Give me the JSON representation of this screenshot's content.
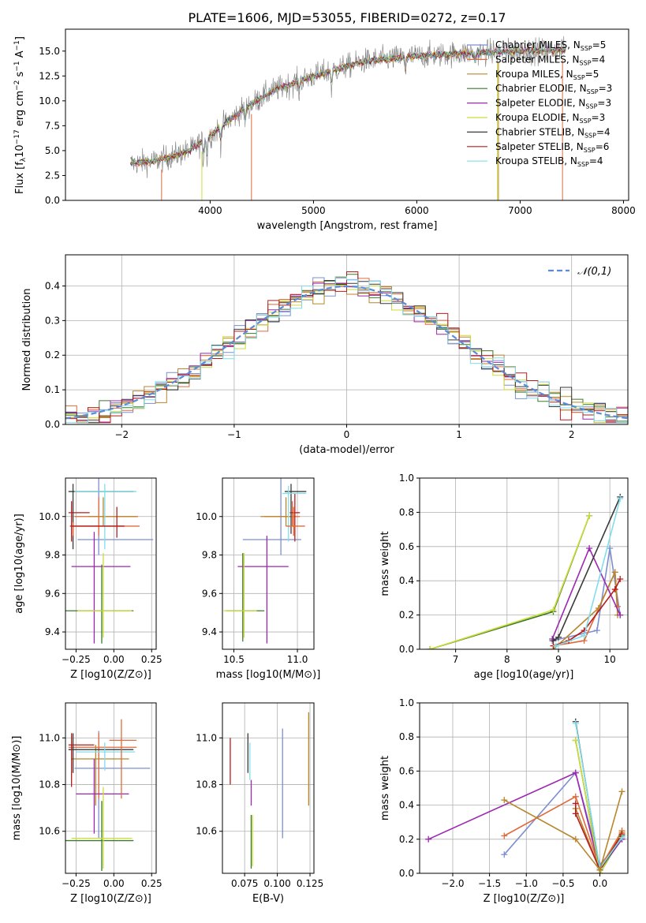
{
  "figure_title": "PLATE=1606, MJD=53055, FIBERID=0272, z=0.17",
  "colors": {
    "grid": "#b0b0b0",
    "axis": "#000000",
    "spectrum": "#7f7f7f",
    "normal": "#5b8bd8"
  },
  "models": [
    {
      "name": "Chabrier MILES",
      "nssp": "5",
      "color": "#7b8fd0"
    },
    {
      "name": "Salpeter MILES",
      "nssp": "4",
      "color": "#e06a3a"
    },
    {
      "name": "Kroupa MILES",
      "nssp": "5",
      "color": "#b8862c"
    },
    {
      "name": "Chabrier ELODIE",
      "nssp": "3",
      "color": "#3a7a2a"
    },
    {
      "name": "Salpeter ELODIE",
      "nssp": "3",
      "color": "#9c27b0"
    },
    {
      "name": "Kroupa ELODIE",
      "nssp": "3",
      "color": "#cddc39"
    },
    {
      "name": "Chabrier STELIB",
      "nssp": "4",
      "color": "#3a3a3a"
    },
    {
      "name": "Salpeter STELIB",
      "nssp": "6",
      "color": "#b71c1c"
    },
    {
      "name": "Kroupa STELIB",
      "nssp": "4",
      "color": "#80deea"
    }
  ],
  "chart_data": [
    {
      "id": "spectrum",
      "type": "line",
      "xlabel": "wavelength [Angstrom, rest frame]",
      "ylabel": "Flux [f_λ 10^-17 erg cm^-2 s^-1 A^-1]",
      "xlim": [
        2600,
        8050
      ],
      "ylim": [
        0,
        17.2
      ],
      "xticks": [
        4000,
        5000,
        6000,
        7000,
        8000
      ],
      "yticks": [
        0.0,
        2.5,
        5.0,
        7.5,
        10.0,
        12.5,
        15.0
      ],
      "x_range": [
        3230,
        7440
      ],
      "trend": {
        "x": [
          3230,
          3500,
          3800,
          4000,
          4300,
          4600,
          5000,
          5500,
          6000,
          6500,
          7000,
          7440
        ],
        "y": [
          3.7,
          4.0,
          5.0,
          6.5,
          9.0,
          11.0,
          12.5,
          14.0,
          14.5,
          14.8,
          15.0,
          15.1
        ]
      },
      "legend_loc": "upper right"
    },
    {
      "id": "residuals",
      "type": "step",
      "xlabel": "(data-model)/error",
      "ylabel": "Normed distribution",
      "xlim": [
        -2.5,
        2.5
      ],
      "ylim": [
        0,
        0.49
      ],
      "xticks": [
        -2,
        -1,
        0,
        1,
        2
      ],
      "yticks": [
        0.0,
        0.1,
        0.2,
        0.3,
        0.4
      ],
      "bin_width": 0.1,
      "legend": "𝒩(0,1)",
      "legend_loc": "upper right"
    },
    {
      "id": "age_vs_Z",
      "type": "errorbar",
      "xlabel": "Z [log10(Z/Z⊙)]",
      "ylabel": "age  [log10(age/yr)]",
      "xlim": [
        -0.32,
        0.28
      ],
      "ylim": [
        9.31,
        10.2
      ],
      "xticks": [
        -0.25,
        0.0,
        0.25
      ],
      "yticks": [
        9.4,
        9.6,
        9.8,
        10.0
      ],
      "points": [
        {
          "m": 0,
          "x": -0.1,
          "xerr": [
            0.14,
            0.36
          ],
          "y": 9.88,
          "yerr": [
            0.08,
            0.32
          ]
        },
        {
          "m": 1,
          "x": -0.1,
          "xerr": [
            0.16,
            0.26
          ],
          "y": 10.0,
          "yerr": [
            0.1,
            0.1
          ]
        },
        {
          "m": 2,
          "x": -0.07,
          "xerr": [
            0.1,
            0.22
          ],
          "y": 10.0,
          "yerr": [
            0.05,
            0.1
          ]
        },
        {
          "m": 3,
          "x": -0.08,
          "xerr": [
            0.24,
            0.21
          ],
          "y": 9.51,
          "yerr": [
            0.17,
            0.24
          ]
        },
        {
          "m": 4,
          "x": -0.13,
          "xerr": [
            0.15,
            0.24
          ],
          "y": 9.74,
          "yerr": [
            0.4,
            0.18
          ]
        },
        {
          "m": 5,
          "x": -0.07,
          "xerr": [
            0.17,
            0.19
          ],
          "y": 9.51,
          "yerr": [
            0.14,
            0.3
          ]
        },
        {
          "m": 6,
          "x": -0.27,
          "xerr": [
            0.03,
            0.4
          ],
          "y": 10.13,
          "yerr": [
            0.3,
            0.04
          ]
        },
        {
          "m": 7,
          "x": -0.28,
          "xerr": [
            0.02,
            0.12
          ],
          "y": 10.02,
          "yerr": [
            0.15,
            0.06
          ]
        },
        {
          "m": 8,
          "x": -0.06,
          "xerr": [
            0.2,
            0.21
          ],
          "y": 10.13,
          "yerr": [
            0.3,
            0.04
          ]
        },
        {
          "m": 1,
          "x": -0.27,
          "xerr": [
            0.01,
            0.44
          ],
          "y": 9.95,
          "yerr": [
            0.05,
            0.02
          ]
        },
        {
          "m": 7,
          "x": 0.02,
          "xerr": [
            0.31,
            0.05
          ],
          "y": 9.95,
          "yerr": [
            0.06,
            0.1
          ]
        }
      ]
    },
    {
      "id": "age_vs_mass",
      "type": "errorbar",
      "xlabel": "mass [log10(M/M⊙)]",
      "ylabel": "",
      "xlim": [
        10.41,
        11.13
      ],
      "ylim": [
        9.31,
        10.2
      ],
      "xticks": [
        10.5,
        11.0
      ],
      "yticks": [
        9.4,
        9.6,
        9.8,
        10.0
      ],
      "points": [
        {
          "m": 0,
          "x": 10.87,
          "xerr": [
            0.3,
            0.16
          ],
          "y": 9.88,
          "yerr": [
            0.08,
            0.32
          ]
        },
        {
          "m": 1,
          "x": 10.96,
          "xerr": [
            0.22,
            0.06
          ],
          "y": 10.0,
          "yerr": [
            0.05,
            0.08
          ]
        },
        {
          "m": 2,
          "x": 10.91,
          "xerr": [
            0.2,
            0.06
          ],
          "y": 10.0,
          "yerr": [
            0.05,
            0.1
          ]
        },
        {
          "m": 3,
          "x": 10.57,
          "xerr": [
            0.13,
            0.17
          ],
          "y": 9.51,
          "yerr": [
            0.16,
            0.3
          ]
        },
        {
          "m": 4,
          "x": 10.76,
          "xerr": [
            0.23,
            0.17
          ],
          "y": 9.74,
          "yerr": [
            0.4,
            0.16
          ]
        },
        {
          "m": 5,
          "x": 10.58,
          "xerr": [
            0.16,
            0.1
          ],
          "y": 9.51,
          "yerr": [
            0.14,
            0.3
          ]
        },
        {
          "m": 6,
          "x": 10.95,
          "xerr": [
            0.05,
            0.12
          ],
          "y": 10.13,
          "yerr": [
            0.22,
            0.04
          ]
        },
        {
          "m": 7,
          "x": 10.98,
          "xerr": [
            0.04,
            0.04
          ],
          "y": 10.02,
          "yerr": [
            0.15,
            0.1
          ]
        },
        {
          "m": 8,
          "x": 10.93,
          "xerr": [
            0.05,
            0.14
          ],
          "y": 10.12,
          "yerr": [
            0.25,
            0.04
          ]
        },
        {
          "m": 1,
          "x": 10.97,
          "xerr": [
            0.06,
            0.09
          ],
          "y": 9.95,
          "yerr": [
            0.05,
            0.1
          ]
        }
      ]
    },
    {
      "id": "weight_vs_age",
      "type": "line_markers",
      "xlabel": "age  [log10(age/yr)]",
      "ylabel": "mass weight",
      "xlim": [
        6.3,
        10.35
      ],
      "ylim": [
        0,
        1
      ],
      "xticks": [
        7,
        8,
        9,
        10
      ],
      "yticks": [
        0.0,
        0.2,
        0.4,
        0.6,
        0.8,
        1.0
      ],
      "series": [
        {
          "m": 0,
          "x": [
            8.88,
            9.75,
            10.0,
            10.2
          ],
          "y": [
            0.05,
            0.11,
            0.59,
            0.2
          ]
        },
        {
          "m": 1,
          "x": [
            8.9,
            9.5,
            10.1,
            10.15
          ],
          "y": [
            0.02,
            0.05,
            0.45,
            0.25
          ]
        },
        {
          "m": 2,
          "x": [
            8.9,
            9.78,
            10.1,
            10.15
          ],
          "y": [
            0.0,
            0.24,
            0.45,
            0.2
          ]
        },
        {
          "m": 3,
          "x": [
            6.5,
            8.9,
            9.6
          ],
          "y": [
            0.0,
            0.22,
            0.78
          ]
        },
        {
          "m": 4,
          "x": [
            8.88,
            9.6,
            10.2
          ],
          "y": [
            0.06,
            0.59,
            0.2
          ]
        },
        {
          "m": 5,
          "x": [
            6.5,
            8.9,
            9.6
          ],
          "y": [
            0.0,
            0.23,
            0.78
          ]
        },
        {
          "m": 6,
          "x": [
            8.9,
            9.0,
            10.2
          ],
          "y": [
            0.05,
            0.07,
            0.89
          ]
        },
        {
          "m": 7,
          "x": [
            8.9,
            9.2,
            9.5,
            10.1,
            10.2
          ],
          "y": [
            0.02,
            0.05,
            0.11,
            0.35,
            0.41
          ]
        },
        {
          "m": 8,
          "x": [
            8.95,
            9.5,
            10.2
          ],
          "y": [
            0.02,
            0.08,
            0.88
          ]
        }
      ]
    },
    {
      "id": "mass_vs_Z",
      "type": "errorbar",
      "xlabel": "Z [log10(Z/Z⊙)]",
      "ylabel": "mass [log10(M/M⊙)]",
      "xlim": [
        -0.32,
        0.28
      ],
      "ylim": [
        10.42,
        11.15
      ],
      "xticks": [
        -0.25,
        0.0,
        0.25
      ],
      "yticks": [
        10.6,
        10.8,
        11.0
      ],
      "points": [
        {
          "m": 0,
          "x": -0.1,
          "xerr": [
            0.16,
            0.34
          ],
          "y": 10.87,
          "yerr": [
            0.3,
            0.16
          ]
        },
        {
          "m": 1,
          "x": -0.1,
          "xerr": [
            0.2,
            0.25
          ],
          "y": 10.96,
          "yerr": [
            0.22,
            0.06
          ]
        },
        {
          "m": 2,
          "x": -0.12,
          "xerr": [
            0.16,
            0.22
          ],
          "y": 10.91,
          "yerr": [
            0.2,
            0.06
          ]
        },
        {
          "m": 3,
          "x": -0.08,
          "xerr": [
            0.24,
            0.21
          ],
          "y": 10.56,
          "yerr": [
            0.13,
            0.17
          ]
        },
        {
          "m": 4,
          "x": -0.13,
          "xerr": [
            0.12,
            0.23
          ],
          "y": 10.76,
          "yerr": [
            0.17,
            0.15
          ]
        },
        {
          "m": 5,
          "x": -0.07,
          "xerr": [
            0.21,
            0.19
          ],
          "y": 10.57,
          "yerr": [
            0.13,
            0.22
          ]
        },
        {
          "m": 6,
          "x": -0.27,
          "xerr": [
            0.03,
            0.4
          ],
          "y": 10.95,
          "yerr": [
            0.1,
            0.07
          ]
        },
        {
          "m": 7,
          "x": -0.28,
          "xerr": [
            0.02,
            0.15
          ],
          "y": 10.97,
          "yerr": [
            0.18,
            0.05
          ]
        },
        {
          "m": 8,
          "x": -0.06,
          "xerr": [
            0.19,
            0.2
          ],
          "y": 10.94,
          "yerr": [
            0.08,
            0.04
          ]
        },
        {
          "m": 1,
          "x": 0.05,
          "xerr": [
            0.08,
            0.1
          ],
          "y": 10.99,
          "yerr": [
            0.25,
            0.09
          ]
        }
      ]
    },
    {
      "id": "mass_vs_EBV",
      "type": "errorbar",
      "xlabel": "E(B-V)",
      "ylabel": "",
      "xlim": [
        0.058,
        0.128
      ],
      "ylim": [
        10.42,
        11.15
      ],
      "xticks": [
        0.075,
        0.1,
        0.125
      ],
      "yticks": [
        10.6,
        10.8,
        11.0
      ],
      "points": [
        {
          "m": 7,
          "x": 0.064,
          "y": 10.9,
          "yerr": [
            0.1,
            0.1
          ]
        },
        {
          "m": 6,
          "x": 0.0775,
          "y": 10.9,
          "yerr": [
            0.05,
            0.12
          ]
        },
        {
          "m": 8,
          "x": 0.079,
          "y": 10.9,
          "yerr": [
            0.08,
            0.08
          ]
        },
        {
          "m": 3,
          "x": 0.08,
          "y": 10.57,
          "yerr": [
            0.13,
            0.1
          ]
        },
        {
          "m": 4,
          "x": 0.08,
          "y": 10.76,
          "yerr": [
            0.05,
            0.06
          ]
        },
        {
          "m": 5,
          "x": 0.081,
          "y": 10.57,
          "yerr": [
            0.12,
            0.1
          ]
        },
        {
          "m": 0,
          "x": 0.104,
          "y": 10.82,
          "yerr": [
            0.25,
            0.22
          ]
        },
        {
          "m": 2,
          "x": 0.124,
          "y": 10.91,
          "yerr": [
            0.2,
            0.2
          ]
        }
      ]
    },
    {
      "id": "weight_vs_Z",
      "type": "line_markers",
      "xlabel": "Z [log10(Z/Z⊙)]",
      "ylabel": "mass weight",
      "xlim": [
        -2.45,
        0.38
      ],
      "ylim": [
        0,
        1
      ],
      "xticks": [
        -2.0,
        -1.5,
        -1.0,
        -0.5,
        0.0
      ],
      "yticks": [
        0.0,
        0.2,
        0.4,
        0.6,
        0.8,
        1.0
      ],
      "series": [
        {
          "m": 0,
          "x": [
            -1.3,
            -0.33,
            0.0,
            0.3
          ],
          "y": [
            0.11,
            0.59,
            0.05,
            0.2
          ]
        },
        {
          "m": 1,
          "x": [
            -1.3,
            -0.33,
            0.0,
            0.3
          ],
          "y": [
            0.22,
            0.45,
            0.03,
            0.25
          ]
        },
        {
          "m": 2,
          "x": [
            -0.33,
            0.0,
            0.3
          ],
          "y": [
            0.38,
            0.02,
            0.24
          ]
        },
        {
          "m": 3,
          "x": [
            -0.33,
            0.0,
            0.3
          ],
          "y": [
            0.78,
            0.0,
            0.22
          ]
        },
        {
          "m": 4,
          "x": [
            -2.33,
            -0.33,
            0.0,
            0.3
          ],
          "y": [
            0.2,
            0.59,
            0.02,
            0.2
          ]
        },
        {
          "m": 5,
          "x": [
            -0.33,
            0.0,
            0.3
          ],
          "y": [
            0.78,
            0.0,
            0.23
          ]
        },
        {
          "m": 6,
          "x": [
            -0.33,
            0.0,
            0.3
          ],
          "y": [
            0.89,
            0.02,
            0.21
          ]
        },
        {
          "m": 7,
          "x": [
            -0.33,
            -0.33,
            0.0,
            0.3
          ],
          "y": [
            0.41,
            0.35,
            0.02,
            0.23
          ]
        },
        {
          "m": 8,
          "x": [
            -0.33,
            0.0,
            0.3
          ],
          "y": [
            0.88,
            0.03,
            0.21
          ]
        },
        {
          "m": 2,
          "x": [
            -1.3,
            -0.33,
            0.0,
            0.3
          ],
          "y": [
            0.43,
            0.2,
            0.02,
            0.48
          ]
        }
      ]
    }
  ]
}
